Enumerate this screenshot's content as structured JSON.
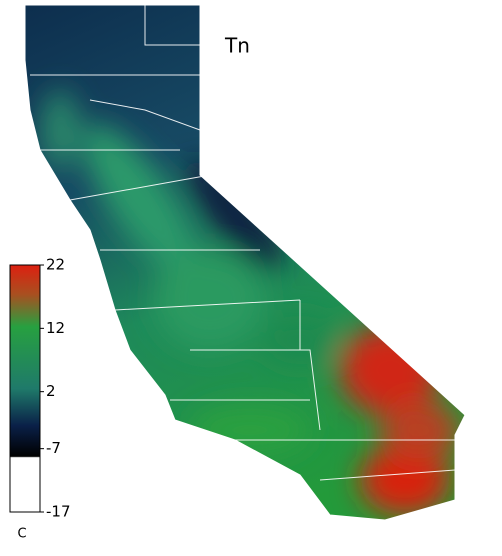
{
  "chart_data": {
    "type": "map",
    "title": "Tn",
    "colorbar_label": "C",
    "clim": [
      -17,
      22
    ],
    "colorbar_ticks": [
      22,
      12,
      2,
      -7,
      -17
    ]
  }
}
